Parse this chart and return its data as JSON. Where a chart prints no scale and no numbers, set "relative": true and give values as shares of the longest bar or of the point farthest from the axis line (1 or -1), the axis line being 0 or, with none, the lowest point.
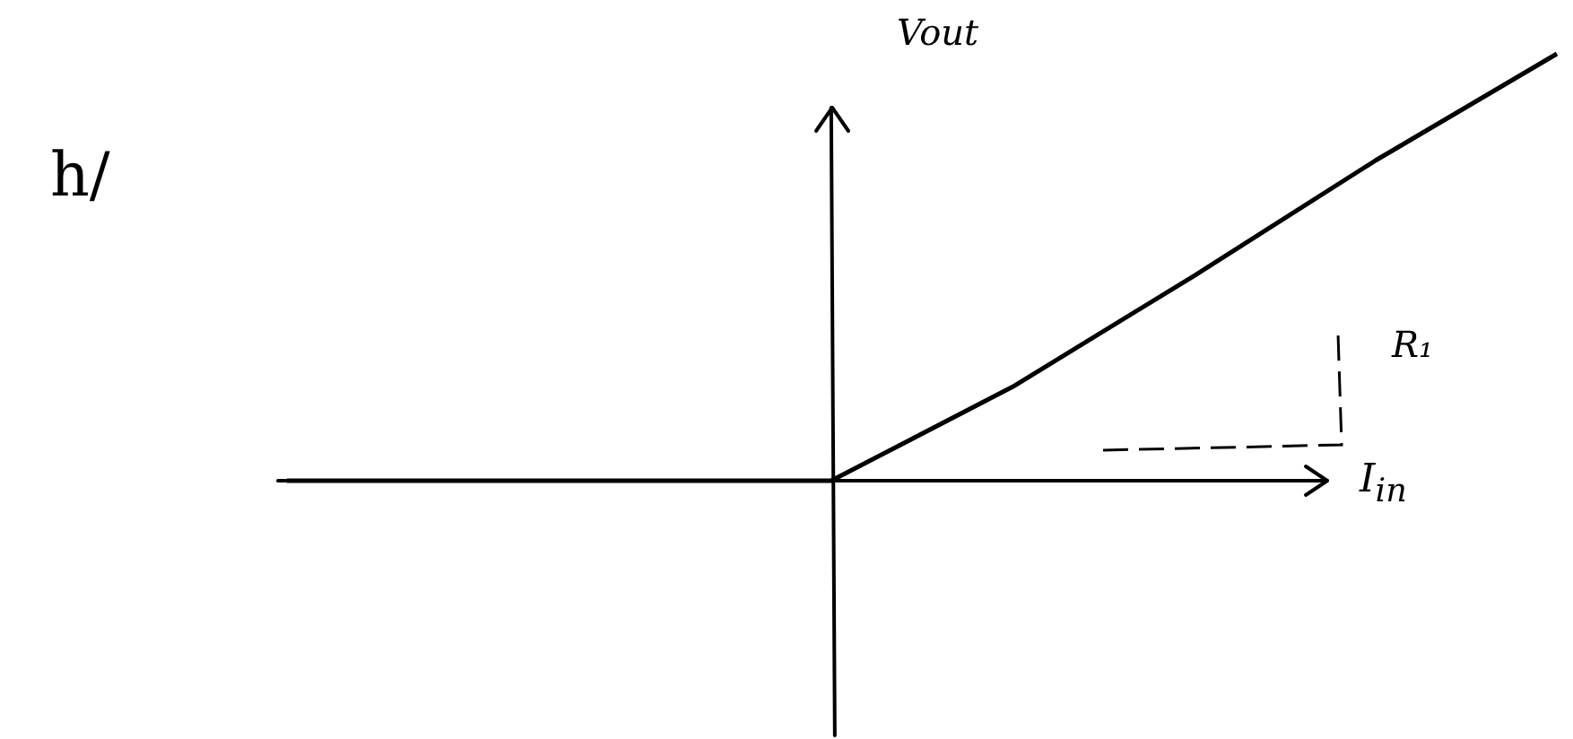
{
  "chart_data": {
    "type": "line",
    "relative": true,
    "title": "h/",
    "xlabel": "I$_{in}$",
    "ylabel": "Vout",
    "annotations": [
      "R₁"
    ],
    "categories": [
      null,
      null,
      null,
      null,
      null,
      null,
      null,
      null
    ],
    "values": [
      0,
      0,
      0,
      0,
      0.22,
      0.48,
      0.75,
      1
    ],
    "color": "#000000"
  }
}
